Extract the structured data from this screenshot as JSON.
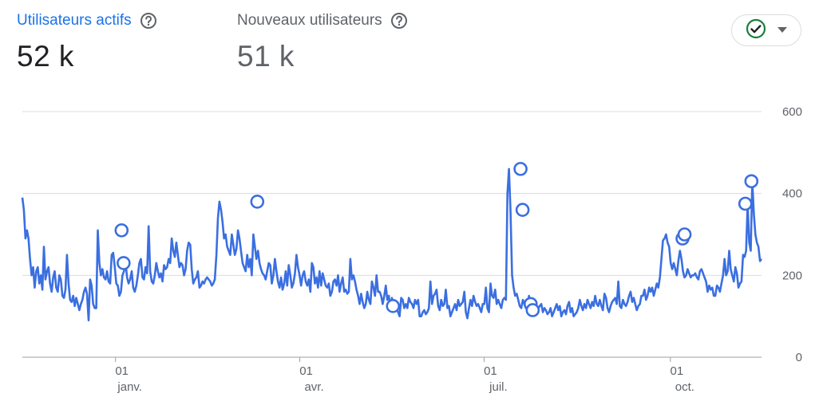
{
  "metrics": {
    "active_users": {
      "label": "Utilisateurs actifs",
      "value": "52 k"
    },
    "new_users": {
      "label": "Nouveaux utilisateurs",
      "value": "51 k"
    }
  },
  "icons": {
    "help": "help-circle-icon",
    "compare": "check-circle-icon",
    "dropdown": "caret-down-icon"
  },
  "colors": {
    "accent": "#1a73e8",
    "line": "#3b6fe0",
    "check": "#188038",
    "grid": "#dadce0",
    "text_muted": "#5f6368"
  },
  "chart_data": {
    "type": "line",
    "x": {
      "start": "2023-11-16",
      "end": "2024-11-15",
      "unit": "day"
    },
    "ylim": [
      0,
      600
    ],
    "yticks": [
      "0",
      "200",
      "400",
      "600"
    ],
    "xticks": [
      {
        "date": "2024-01-01",
        "day": "01",
        "month": "janv."
      },
      {
        "date": "2024-04-01",
        "day": "01",
        "month": "avr."
      },
      {
        "date": "2024-07-01",
        "day": "01",
        "month": "juil."
      },
      {
        "date": "2024-10-01",
        "day": "01",
        "month": "oct."
      }
    ],
    "grid": true,
    "series": [
      {
        "values": [
          390,
          360,
          290,
          310,
          290,
          240,
          200,
          220,
          170,
          210,
          220,
          180,
          200,
          165,
          270,
          190,
          210,
          220,
          180,
          160,
          195,
          210,
          170,
          160,
          200,
          190,
          150,
          145,
          165,
          250,
          180,
          140,
          135,
          150,
          125,
          145,
          130,
          115,
          130,
          140,
          160,
          170,
          155,
          90,
          190,
          175,
          130,
          120,
          120,
          310,
          230,
          200,
          215,
          195,
          190,
          210,
          185,
          180,
          250,
          255,
          220,
          180,
          175,
          150,
          160,
          200,
          210,
          230,
          195,
          180,
          190,
          210,
          170,
          160,
          175,
          200,
          230,
          240,
          195,
          190,
          220,
          205,
          320,
          210,
          185,
          180,
          200,
          230,
          210,
          195,
          205,
          185,
          225,
          215,
          220,
          240,
          230,
          290,
          260,
          245,
          280,
          250,
          220,
          230,
          225,
          200,
          215,
          260,
          280,
          275,
          215,
          180,
          190,
          195,
          210,
          170,
          175,
          185,
          180,
          190,
          195,
          190,
          185,
          175,
          180,
          190,
          250,
          340,
          380,
          360,
          330,
          290,
          300,
          270,
          260,
          250,
          300,
          275,
          250,
          265,
          310,
          290,
          260,
          230,
          220,
          210,
          250,
          220,
          240,
          200,
          300,
          270,
          240,
          260,
          230,
          215,
          205,
          200,
          190,
          210,
          230,
          225,
          180,
          200,
          240,
          210,
          185,
          170,
          195,
          165,
          180,
          210,
          175,
          225,
          200,
          170,
          180,
          205,
          250,
          220,
          200,
          175,
          200,
          210,
          185,
          175,
          190,
          160,
          230,
          220,
          180,
          195,
          170,
          210,
          175,
          205,
          190,
          175,
          170,
          180,
          150,
          160,
          185,
          190,
          175,
          200,
          160,
          180,
          195,
          160,
          165,
          155,
          160,
          240,
          190,
          200,
          185,
          165,
          150,
          130,
          155,
          135,
          120,
          130,
          160,
          140,
          130,
          185,
          170,
          150,
          200,
          160,
          160,
          150,
          130,
          150,
          175,
          140,
          150,
          120,
          145,
          125,
          130,
          125,
          110,
          100,
          145,
          140,
          120,
          130,
          120,
          145,
          135,
          130,
          120,
          140,
          130,
          140,
          100,
          100,
          110,
          115,
          105,
          110,
          120,
          185,
          130,
          150,
          155,
          165,
          125,
          115,
          140,
          125,
          130,
          165,
          120,
          125,
          100,
          110,
          120,
          130,
          115,
          140,
          125,
          130,
          135,
          160,
          110,
          95,
          120,
          140,
          125,
          150,
          135,
          125,
          130,
          120,
          110,
          130,
          130,
          170,
          120,
          110,
          180,
          150,
          145,
          165,
          130,
          140,
          130,
          120,
          140,
          145,
          140,
          400,
          460,
          360,
          200,
          170,
          150,
          155,
          140,
          125,
          120,
          140,
          130,
          120,
          125,
          150,
          130,
          110,
          120,
          135,
          115,
          120,
          125,
          130,
          110,
          120,
          115,
          105,
          110,
          120,
          100,
          110,
          120,
          130,
          115,
          125,
          100,
          110,
          115,
          105,
          125,
          135,
          110,
          120,
          100,
          105,
          110,
          120,
          140,
          125,
          115,
          130,
          120,
          140,
          130,
          120,
          135,
          125,
          150,
          130,
          125,
          140,
          125,
          115,
          155,
          145,
          120,
          110,
          125,
          135,
          140,
          145,
          130,
          185,
          125,
          120,
          140,
          130,
          125,
          135,
          150,
          160,
          135,
          145,
          130,
          115,
          125,
          130,
          150,
          150,
          165,
          140,
          150,
          170,
          160,
          170,
          150,
          165,
          180,
          170,
          195,
          240,
          285,
          290,
          300,
          280,
          270,
          230,
          215,
          230,
          215,
          200,
          235,
          260,
          240,
          210,
          195,
          200,
          215,
          205,
          195,
          200,
          200,
          205,
          195,
          190,
          210,
          215,
          205,
          195,
          185,
          160,
          175,
          165,
          170,
          150,
          150,
          175,
          170,
          160,
          180,
          200,
          240,
          200,
          210,
          260,
          215,
          200,
          185,
          220,
          205,
          170,
          180,
          185,
          250,
          245,
          260,
          375,
          280,
          260,
          430,
          350,
          300,
          280,
          270,
          235,
          240
        ]
      }
    ],
    "markers": [
      {
        "date": "2024-01-04",
        "value": 310
      },
      {
        "date": "2024-01-05",
        "value": 230
      },
      {
        "date": "2024-03-11",
        "value": 380
      },
      {
        "date": "2024-05-17",
        "value": 125
      },
      {
        "date": "2024-07-19",
        "value": 460
      },
      {
        "date": "2024-07-20",
        "value": 360
      },
      {
        "date": "2024-07-24",
        "value": 130
      },
      {
        "date": "2024-07-25",
        "value": 115
      },
      {
        "date": "2024-10-07",
        "value": 290
      },
      {
        "date": "2024-10-08",
        "value": 300
      },
      {
        "date": "2024-11-07",
        "value": 375
      },
      {
        "date": "2024-11-10",
        "value": 430
      }
    ]
  }
}
